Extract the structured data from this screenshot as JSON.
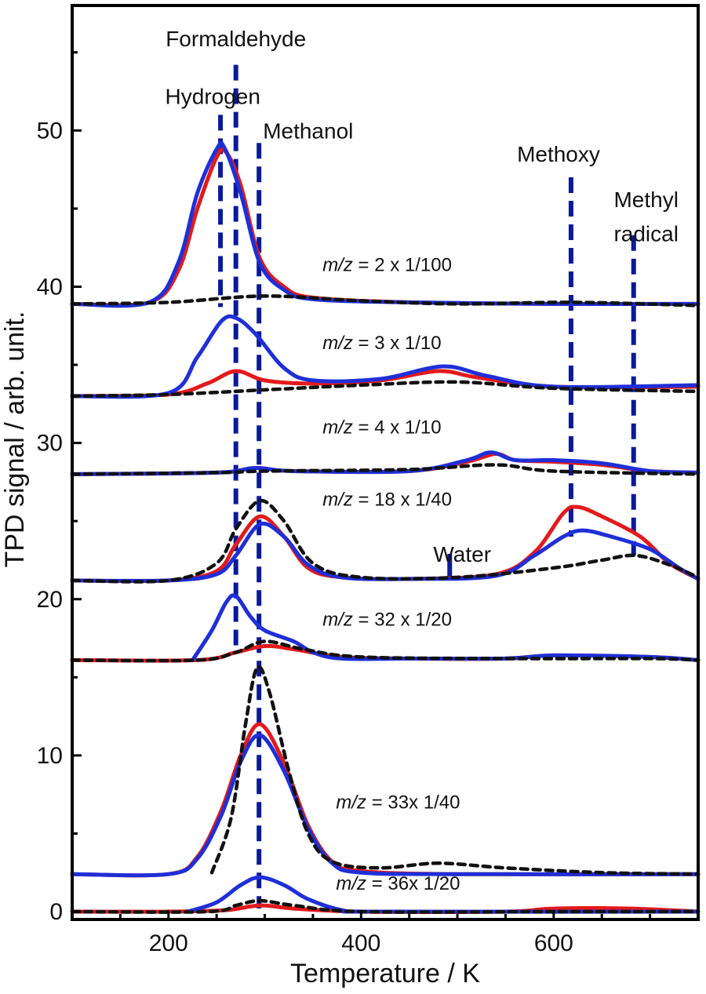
{
  "chart_data": {
    "type": "line",
    "xlabel": "Temperature / K",
    "ylabel": "TPD signal / arb. unit.",
    "xlim": [
      100,
      750
    ],
    "ylim": [
      -0.5,
      58
    ],
    "x_ticks": [
      200,
      400,
      600
    ],
    "y_ticks": [
      0,
      10,
      20,
      30,
      40,
      50
    ],
    "grid": false,
    "legend": "none",
    "colors": {
      "red": "#e31a1c",
      "blue": "#1f2fd8",
      "black": "#111111",
      "guide": "#0a1a9a"
    },
    "annotations": [
      {
        "text": "Formaldehyde",
        "x": 270,
        "y": 55.4
      },
      {
        "text": "Hydrogen",
        "x": 246,
        "y": 51.7
      },
      {
        "text": "Methanol",
        "x": 345,
        "y": 49.5
      },
      {
        "text": "Methoxy",
        "x": 605,
        "y": 48.0
      },
      {
        "text": "Methyl",
        "x": 696,
        "y": 45.1
      },
      {
        "text": "radical",
        "x": 696,
        "y": 42.9
      },
      {
        "text": "Water",
        "x": 505,
        "y": 22.4
      }
    ],
    "mass_labels": [
      {
        "prefix": "m/z",
        "rest": " = 2 x 1/100",
        "x": 360,
        "y": 41.0
      },
      {
        "prefix": "m/z",
        "rest": " = 3 x 1/10",
        "x": 360,
        "y": 36.0
      },
      {
        "prefix": "m/z",
        "rest": " = 4 x 1/10",
        "x": 360,
        "y": 30.6
      },
      {
        "prefix": "m/z",
        "rest": " = 18 x 1/40",
        "x": 360,
        "y": 26.0
      },
      {
        "prefix": "m/z",
        "rest": " = 32 x 1/20",
        "x": 360,
        "y": 18.3
      },
      {
        "prefix": "m/z",
        "rest": " = 33x 1/40",
        "x": 374,
        "y": 6.6
      },
      {
        "prefix": "m/z",
        "rest": " = 36x 1/20",
        "x": 374,
        "y": 1.4
      }
    ],
    "guides": [
      {
        "x": 254,
        "y_top": 51.0,
        "y_bottom": 38.7
      },
      {
        "x": 270,
        "y_top": 54.2,
        "y_bottom": 17.0
      },
      {
        "x": 294,
        "y_top": 49.2,
        "y_bottom": 0.2
      },
      {
        "x": 618,
        "y_top": 47.0,
        "y_bottom": 24.0
      },
      {
        "x": 683,
        "y_top": 43.3,
        "y_bottom": 22.8
      },
      {
        "x": 492,
        "y_top": 22.9,
        "y_bottom": 21.3
      }
    ],
    "series": [
      {
        "color": "red",
        "style": "solid",
        "points": [
          [
            100,
            38.9
          ],
          [
            180,
            39.0
          ],
          [
            210,
            41.0
          ],
          [
            230,
            45.0
          ],
          [
            250,
            48.3
          ],
          [
            260,
            48.6
          ],
          [
            275,
            46.5
          ],
          [
            295,
            41.8
          ],
          [
            320,
            40.0
          ],
          [
            350,
            39.3
          ],
          [
            450,
            39.0
          ],
          [
            600,
            38.9
          ],
          [
            750,
            38.9
          ]
        ]
      },
      {
        "color": "blue",
        "style": "solid",
        "points": [
          [
            100,
            38.9
          ],
          [
            180,
            39.0
          ],
          [
            210,
            41.5
          ],
          [
            230,
            46.0
          ],
          [
            250,
            48.8
          ],
          [
            258,
            48.9
          ],
          [
            275,
            46.0
          ],
          [
            295,
            41.5
          ],
          [
            320,
            39.8
          ],
          [
            350,
            39.2
          ],
          [
            450,
            39.0
          ],
          [
            600,
            38.9
          ],
          [
            750,
            38.9
          ]
        ]
      },
      {
        "color": "black",
        "style": "dashed",
        "points": [
          [
            100,
            38.9
          ],
          [
            200,
            39.0
          ],
          [
            300,
            39.4
          ],
          [
            400,
            39.1
          ],
          [
            500,
            38.9
          ],
          [
            620,
            39.0
          ],
          [
            750,
            38.8
          ]
        ]
      },
      {
        "color": "red",
        "style": "solid",
        "points": [
          [
            100,
            33.0
          ],
          [
            200,
            33.1
          ],
          [
            240,
            33.8
          ],
          [
            270,
            34.6
          ],
          [
            300,
            34.0
          ],
          [
            350,
            33.8
          ],
          [
            420,
            34.0
          ],
          [
            480,
            34.6
          ],
          [
            520,
            34.2
          ],
          [
            600,
            33.6
          ],
          [
            750,
            33.6
          ]
        ]
      },
      {
        "color": "blue",
        "style": "solid",
        "points": [
          [
            100,
            33.0
          ],
          [
            200,
            33.2
          ],
          [
            230,
            35.5
          ],
          [
            255,
            37.8
          ],
          [
            270,
            38.0
          ],
          [
            290,
            37.0
          ],
          [
            320,
            34.8
          ],
          [
            350,
            34.0
          ],
          [
            420,
            34.1
          ],
          [
            485,
            34.9
          ],
          [
            530,
            34.3
          ],
          [
            600,
            33.6
          ],
          [
            750,
            33.7
          ]
        ]
      },
      {
        "color": "black",
        "style": "dashed",
        "points": [
          [
            100,
            33.0
          ],
          [
            200,
            33.1
          ],
          [
            300,
            33.4
          ],
          [
            400,
            33.7
          ],
          [
            500,
            33.9
          ],
          [
            600,
            33.5
          ],
          [
            750,
            33.3
          ]
        ]
      },
      {
        "color": "red",
        "style": "solid",
        "points": [
          [
            100,
            28.0
          ],
          [
            250,
            28.1
          ],
          [
            290,
            28.4
          ],
          [
            330,
            28.2
          ],
          [
            450,
            28.2
          ],
          [
            510,
            28.8
          ],
          [
            540,
            29.3
          ],
          [
            560,
            28.9
          ],
          [
            600,
            28.8
          ],
          [
            650,
            28.6
          ],
          [
            700,
            28.2
          ],
          [
            750,
            28.1
          ]
        ]
      },
      {
        "color": "blue",
        "style": "solid",
        "points": [
          [
            100,
            28.0
          ],
          [
            250,
            28.1
          ],
          [
            290,
            28.4
          ],
          [
            330,
            28.2
          ],
          [
            450,
            28.2
          ],
          [
            510,
            28.9
          ],
          [
            535,
            29.4
          ],
          [
            560,
            28.9
          ],
          [
            600,
            28.9
          ],
          [
            650,
            28.7
          ],
          [
            700,
            28.2
          ],
          [
            750,
            28.1
          ]
        ]
      },
      {
        "color": "black",
        "style": "dashed",
        "points": [
          [
            100,
            28.0
          ],
          [
            250,
            28.1
          ],
          [
            300,
            28.2
          ],
          [
            450,
            28.3
          ],
          [
            540,
            28.6
          ],
          [
            600,
            28.2
          ],
          [
            750,
            28.0
          ]
        ]
      },
      {
        "color": "red",
        "style": "solid",
        "points": [
          [
            100,
            21.2
          ],
          [
            200,
            21.2
          ],
          [
            250,
            21.8
          ],
          [
            270,
            23.5
          ],
          [
            295,
            25.3
          ],
          [
            320,
            24.0
          ],
          [
            345,
            22.0
          ],
          [
            380,
            21.4
          ],
          [
            450,
            21.3
          ],
          [
            540,
            21.6
          ],
          [
            580,
            23.0
          ],
          [
            610,
            25.5
          ],
          [
            625,
            25.9
          ],
          [
            650,
            25.3
          ],
          [
            690,
            24.0
          ],
          [
            720,
            22.3
          ],
          [
            750,
            21.3
          ]
        ]
      },
      {
        "color": "blue",
        "style": "solid",
        "points": [
          [
            100,
            21.2
          ],
          [
            200,
            21.2
          ],
          [
            250,
            21.6
          ],
          [
            270,
            22.8
          ],
          [
            295,
            24.8
          ],
          [
            320,
            24.0
          ],
          [
            345,
            22.2
          ],
          [
            380,
            21.4
          ],
          [
            450,
            21.3
          ],
          [
            540,
            21.5
          ],
          [
            580,
            22.8
          ],
          [
            610,
            24.0
          ],
          [
            630,
            24.4
          ],
          [
            660,
            24.0
          ],
          [
            700,
            23.2
          ],
          [
            730,
            22.0
          ],
          [
            750,
            21.3
          ]
        ]
      },
      {
        "color": "black",
        "style": "dashed",
        "points": [
          [
            100,
            21.2
          ],
          [
            200,
            21.2
          ],
          [
            250,
            22.3
          ],
          [
            270,
            24.5
          ],
          [
            295,
            26.3
          ],
          [
            320,
            25.0
          ],
          [
            350,
            22.3
          ],
          [
            400,
            21.4
          ],
          [
            500,
            21.4
          ],
          [
            600,
            22.0
          ],
          [
            650,
            22.5
          ],
          [
            685,
            22.8
          ],
          [
            720,
            22.2
          ],
          [
            750,
            21.4
          ]
        ]
      },
      {
        "color": "red",
        "style": "solid",
        "points": [
          [
            100,
            16.1
          ],
          [
            230,
            16.1
          ],
          [
            270,
            16.6
          ],
          [
            300,
            17.0
          ],
          [
            330,
            16.8
          ],
          [
            380,
            16.3
          ],
          [
            450,
            16.2
          ],
          [
            550,
            16.2
          ],
          [
            600,
            16.4
          ],
          [
            700,
            16.3
          ],
          [
            750,
            16.1
          ]
        ]
      },
      {
        "color": "blue",
        "style": "solid",
        "points": [
          [
            225,
            16.1
          ],
          [
            245,
            18.0
          ],
          [
            260,
            19.8
          ],
          [
            270,
            20.2
          ],
          [
            285,
            18.9
          ],
          [
            300,
            18.0
          ],
          [
            330,
            17.3
          ],
          [
            350,
            16.6
          ],
          [
            380,
            16.2
          ],
          [
            450,
            16.2
          ],
          [
            550,
            16.2
          ],
          [
            600,
            16.4
          ],
          [
            700,
            16.3
          ],
          [
            750,
            16.1
          ]
        ]
      },
      {
        "color": "black",
        "style": "dashed",
        "points": [
          [
            100,
            16.1
          ],
          [
            230,
            16.1
          ],
          [
            270,
            16.6
          ],
          [
            300,
            17.3
          ],
          [
            340,
            16.8
          ],
          [
            400,
            16.3
          ],
          [
            550,
            16.2
          ],
          [
            700,
            16.2
          ],
          [
            750,
            16.1
          ]
        ]
      },
      {
        "color": "red",
        "style": "solid",
        "points": [
          [
            100,
            2.4
          ],
          [
            200,
            2.4
          ],
          [
            230,
            3.5
          ],
          [
            255,
            6.5
          ],
          [
            275,
            10.0
          ],
          [
            295,
            12.0
          ],
          [
            320,
            9.5
          ],
          [
            345,
            5.5
          ],
          [
            370,
            3.2
          ],
          [
            400,
            2.6
          ],
          [
            500,
            2.4
          ],
          [
            750,
            2.4
          ]
        ]
      },
      {
        "color": "blue",
        "style": "solid",
        "points": [
          [
            100,
            2.4
          ],
          [
            200,
            2.4
          ],
          [
            230,
            3.4
          ],
          [
            255,
            6.2
          ],
          [
            275,
            9.6
          ],
          [
            295,
            11.3
          ],
          [
            320,
            9.0
          ],
          [
            345,
            5.3
          ],
          [
            370,
            3.1
          ],
          [
            400,
            2.5
          ],
          [
            500,
            2.4
          ],
          [
            750,
            2.4
          ]
        ]
      },
      {
        "color": "black",
        "style": "dashed",
        "points": [
          [
            245,
            2.5
          ],
          [
            265,
            6.0
          ],
          [
            280,
            12.0
          ],
          [
            292,
            15.6
          ],
          [
            305,
            14.0
          ],
          [
            325,
            9.0
          ],
          [
            345,
            5.0
          ],
          [
            370,
            3.2
          ],
          [
            420,
            2.8
          ],
          [
            480,
            3.1
          ],
          [
            550,
            2.8
          ],
          [
            650,
            2.5
          ],
          [
            750,
            2.4
          ]
        ]
      },
      {
        "color": "red",
        "style": "solid",
        "points": [
          [
            100,
            0.0
          ],
          [
            200,
            0.0
          ],
          [
            260,
            0.1
          ],
          [
            295,
            0.4
          ],
          [
            330,
            0.2
          ],
          [
            400,
            0.0
          ],
          [
            550,
            0.0
          ],
          [
            600,
            0.2
          ],
          [
            680,
            0.2
          ],
          [
            750,
            0.0
          ]
        ]
      },
      {
        "color": "blue",
        "style": "solid",
        "points": [
          [
            220,
            0.0
          ],
          [
            250,
            0.6
          ],
          [
            275,
            1.7
          ],
          [
            295,
            2.2
          ],
          [
            320,
            1.7
          ],
          [
            345,
            0.8
          ],
          [
            380,
            0.1
          ],
          [
            420,
            0.0
          ],
          [
            750,
            0.0
          ]
        ]
      },
      {
        "color": "black",
        "style": "dashed",
        "points": [
          [
            100,
            0.0
          ],
          [
            240,
            0.0
          ],
          [
            270,
            0.4
          ],
          [
            295,
            0.7
          ],
          [
            330,
            0.4
          ],
          [
            400,
            0.0
          ],
          [
            600,
            0.0
          ],
          [
            750,
            0.0
          ]
        ]
      }
    ]
  }
}
